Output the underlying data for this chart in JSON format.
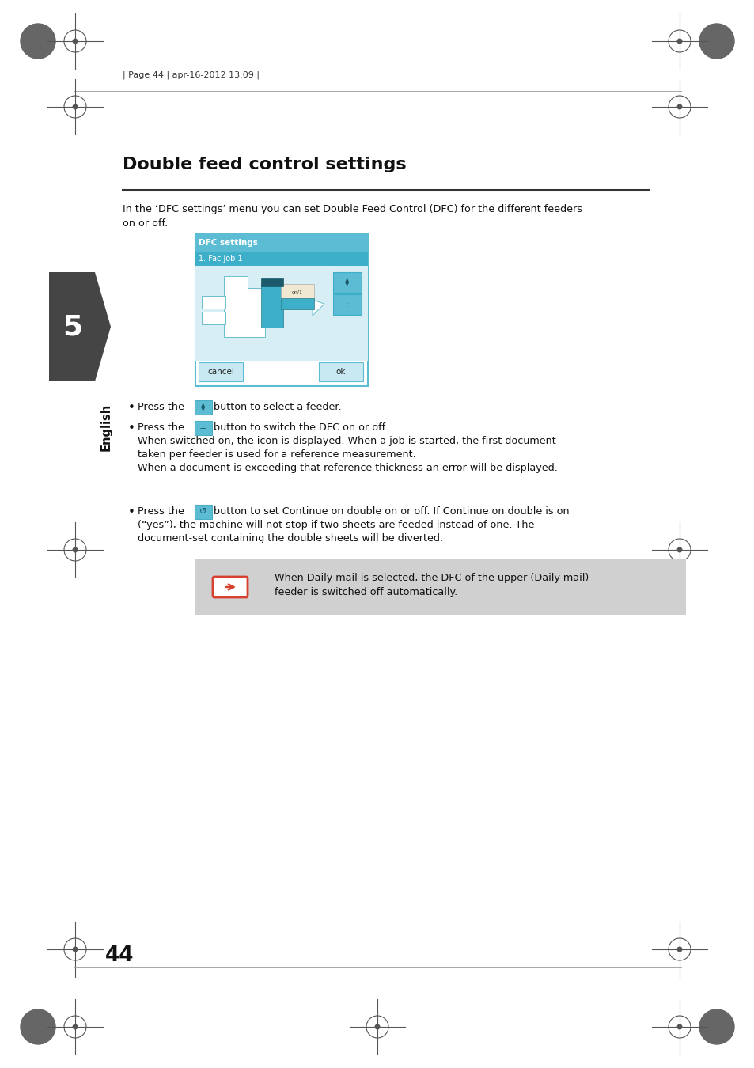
{
  "bg_color": "#ffffff",
  "title": "Double feed control settings",
  "header_text": "| Page 44 | apr-16-2012 13:09 |",
  "page_number": "44",
  "intro_line1": "In the ‘DFC settings’ menu you can set Double Feed Control (DFC) for the different feeders",
  "intro_line2": "on or off.",
  "dfc_header1": "DFC settings",
  "dfc_header2": "1. Fac job 1",
  "dfc_header_bg": "#5bbcd4",
  "dfc_header2_bg": "#3eafc8",
  "dfc_body_bg": "#d8eef5",
  "dfc_border_color": "#5bbcd4",
  "cancel_btn": "cancel",
  "ok_btn": "ok",
  "btn_bg": "#c8e8f2",
  "note_text1": "When Daily mail is selected, the DFC of the upper (Daily mail)",
  "note_text2": "feeder is switched off automatically.",
  "note_bg": "#d0d0d0",
  "note_icon_color": "#d84030",
  "chapter_number": "5",
  "chapter_bg": "#454545",
  "english_label": "English",
  "teal_dark": "#2a7a8a",
  "teal_mid": "#4aafc5",
  "teal_light": "#b8dce8",
  "cream": "#f0e8d0",
  "press_text": "Press the",
  "b1_suffix": "button to select a feeder.",
  "b2_suffix": "button to switch the DFC on or off.",
  "b2_line2": "When switched on, the icon is displayed. When a job is started, the first document",
  "b2_line3": "taken per feeder is used for a reference measurement.",
  "b2_line4": "When a document is exceeding that reference thickness an error will be displayed.",
  "b3_suffix": "button to set Continue on double on or off. If Continue on double is on",
  "b3_line2": "(“yes”), the machine will not stop if two sheets are feeded instead of one. The",
  "b3_line3": "document-set containing the double sheets will be diverted."
}
